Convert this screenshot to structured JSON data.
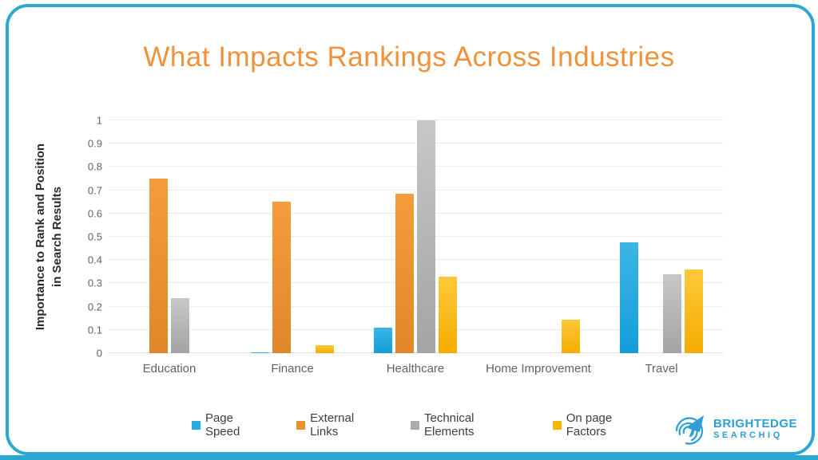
{
  "frame": {
    "border_color": "#2BA7D3"
  },
  "chart_data": {
    "type": "bar",
    "title": "What Impacts Rankings Across Industries",
    "title_color": "#F0923B",
    "ylabel_lines": [
      "Importance to Rank and Position",
      "in Search Results"
    ],
    "xlabel": "",
    "ylim": [
      0,
      1
    ],
    "yticks": [
      "0",
      "0.1",
      "0.2",
      "0.3",
      "0.4",
      "0.5",
      "0.6",
      "0.7",
      "0.8",
      "0.9",
      "1"
    ],
    "grid": true,
    "legend_position": "bottom",
    "categories": [
      "Education",
      "Finance",
      "Healthcare",
      "Home Improvement",
      "Travel"
    ],
    "series": [
      {
        "name": "Page Speed",
        "color": "#29ABE2",
        "color_top": "#3DB5E6",
        "color_bottom": "#139ED9",
        "values": [
          null,
          0.005,
          0.11,
          null,
          0.475
        ]
      },
      {
        "name": "External Links",
        "color": "#E8912D",
        "color_top": "#F59C3C",
        "color_bottom": "#E1872A",
        "values": [
          0.75,
          0.65,
          0.685,
          null,
          null
        ]
      },
      {
        "name": "Technical Elements",
        "color": "#ABABAB",
        "color_top": "#C7C7C7",
        "color_bottom": "#A4A4A4",
        "values": [
          0.235,
          null,
          1.0,
          null,
          0.34
        ]
      },
      {
        "name": "On page Factors",
        "color": "#F5B800",
        "color_top": "#FDC93A",
        "color_bottom": "#F5AC00",
        "values": [
          null,
          0.035,
          0.33,
          0.145,
          0.36
        ]
      }
    ]
  },
  "logo": {
    "line1": "BRIGHTEDGE",
    "line2": "SEARCHIQ",
    "color": "#2D9ED6"
  }
}
